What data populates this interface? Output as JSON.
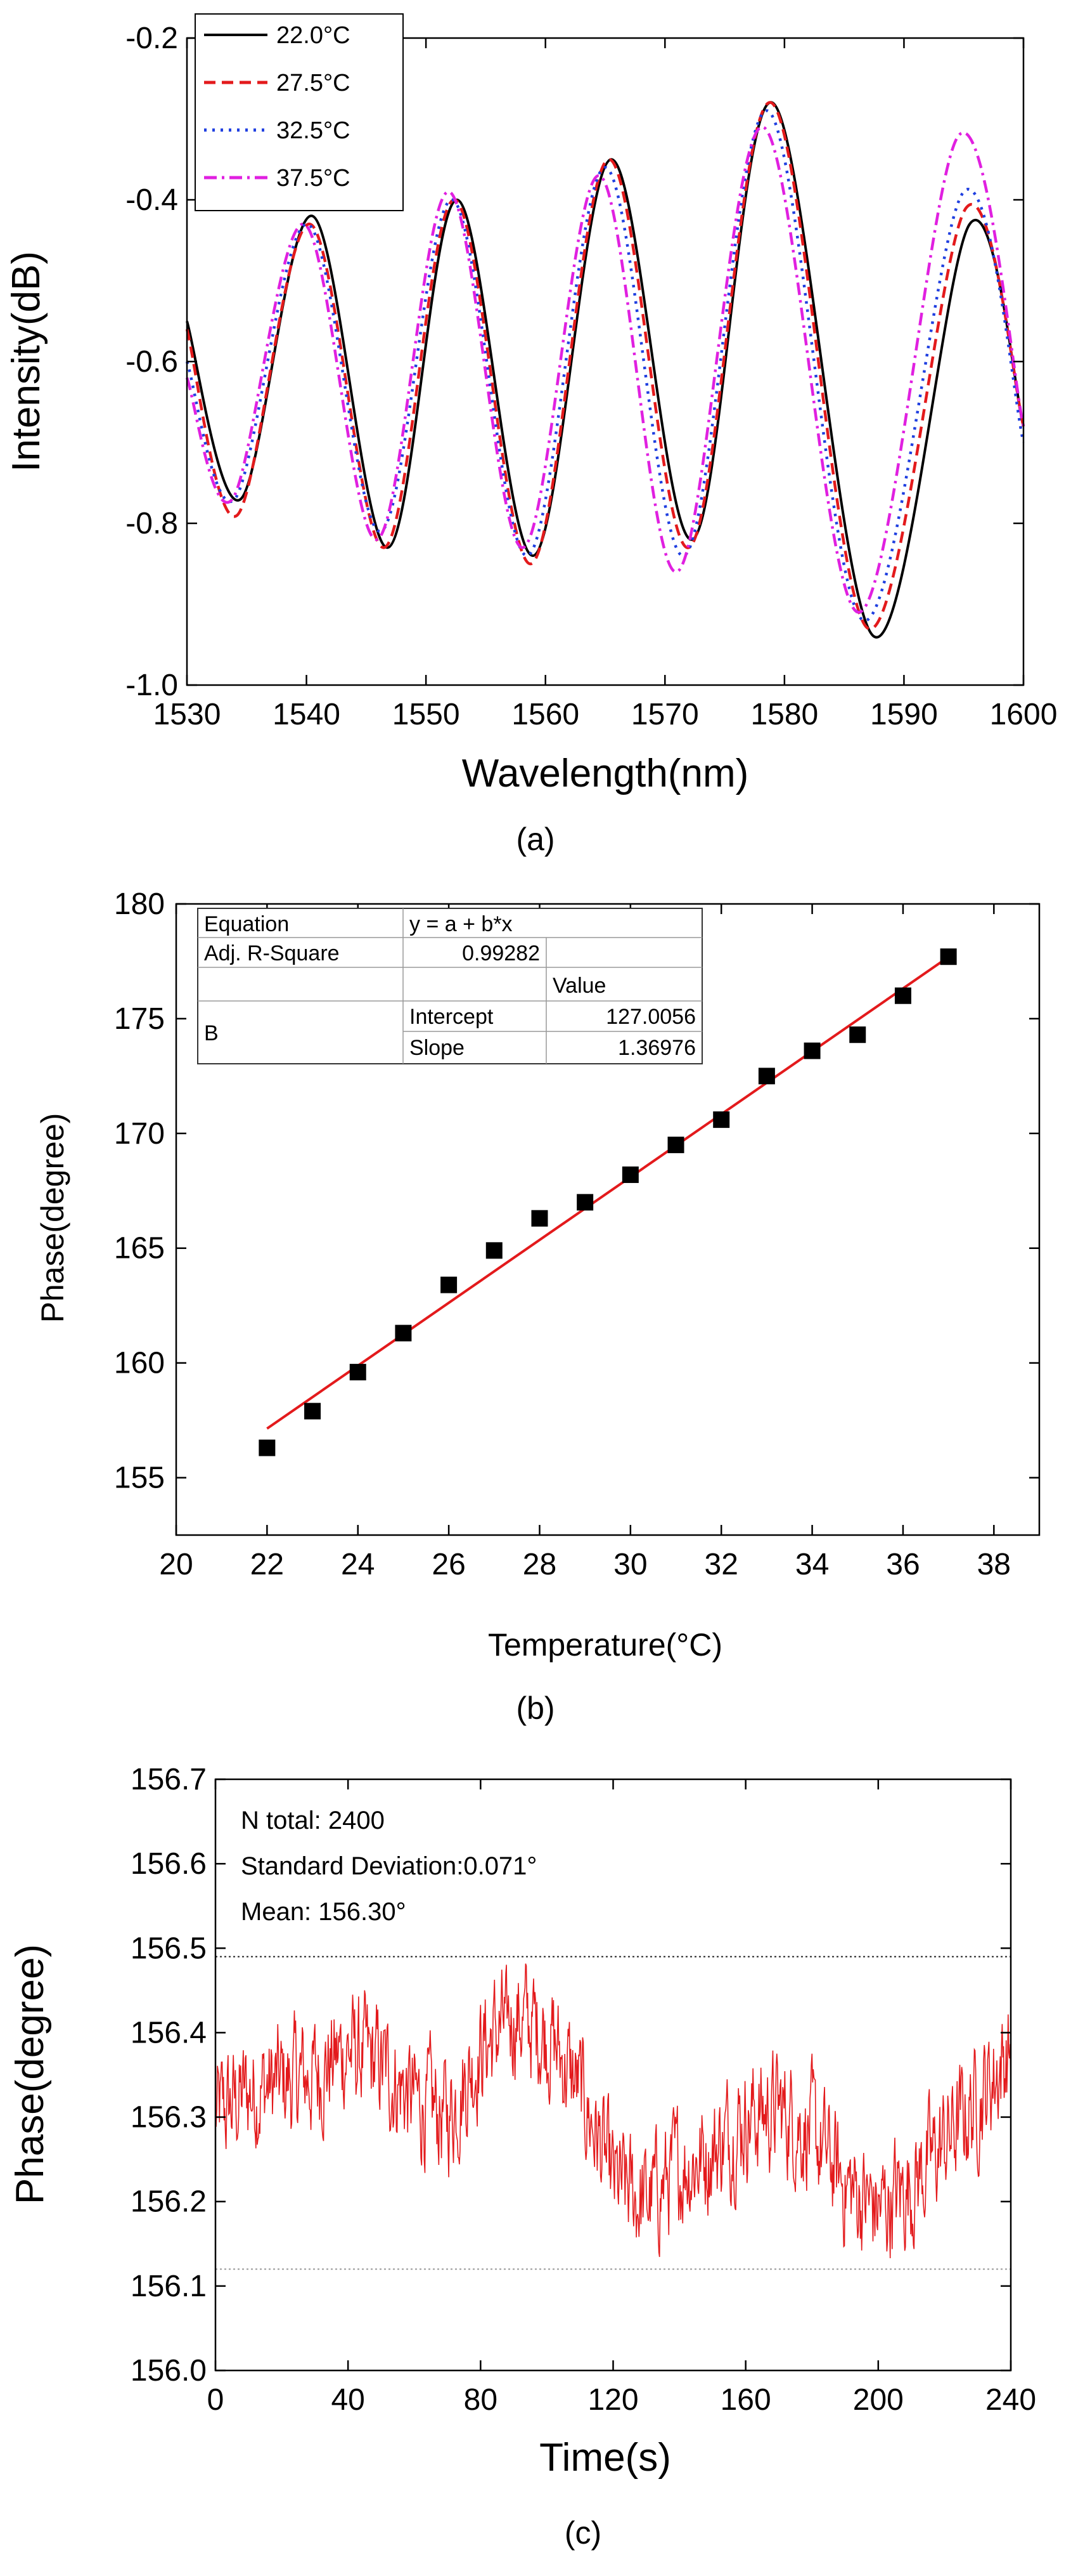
{
  "chart_data": [
    {
      "type": "line",
      "panel_label": "(a)",
      "xlabel": "Wavelength(nm)",
      "ylabel": "Intensity(dB)",
      "xlim": [
        1530,
        1600
      ],
      "ylim": [
        -1.0,
        -0.2
      ],
      "x_ticks": [
        "1530",
        "1540",
        "1550",
        "1560",
        "1570",
        "1580",
        "1590",
        "1600"
      ],
      "y_ticks": [
        "-1.0",
        "-0.8",
        "-0.6",
        "-0.4",
        "-0.2"
      ],
      "legend_position": "top-left",
      "series": [
        {
          "name": "22.0°C",
          "color": "#000000",
          "dash": "solid",
          "x": [
            1530,
            1534.5,
            1540.5,
            1546.8,
            1552.6,
            1559,
            1565.5,
            1572.3,
            1579,
            1587.5,
            1595.5,
            1600
          ],
          "y": [
            -0.55,
            -0.77,
            -0.42,
            -0.83,
            -0.4,
            -0.84,
            -0.35,
            -0.82,
            -0.28,
            -0.94,
            -0.43,
            -0.68
          ]
        },
        {
          "name": "27.5°C",
          "color": "#e31a1c",
          "dash": "dashed",
          "x": [
            1530,
            1534.2,
            1540.3,
            1546.5,
            1552.4,
            1558.8,
            1565.3,
            1572.0,
            1578.9,
            1587.0,
            1595.2,
            1600
          ],
          "y": [
            -0.56,
            -0.79,
            -0.43,
            -0.83,
            -0.4,
            -0.85,
            -0.35,
            -0.83,
            -0.28,
            -0.93,
            -0.41,
            -0.68
          ]
        },
        {
          "name": "32.5°C",
          "color": "#1f3fe0",
          "dash": "dotted",
          "x": [
            1530,
            1534.0,
            1540.1,
            1546.2,
            1552.2,
            1558.5,
            1565.0,
            1571.6,
            1578.6,
            1586.6,
            1595.0,
            1600
          ],
          "y": [
            -0.6,
            -0.77,
            -0.43,
            -0.81,
            -0.4,
            -0.84,
            -0.36,
            -0.84,
            -0.29,
            -0.92,
            -0.39,
            -0.7
          ]
        },
        {
          "name": "37.5°C",
          "color": "#e020e0",
          "dash": "dashdot",
          "x": [
            1530,
            1533.8,
            1539.8,
            1545.9,
            1551.9,
            1558.1,
            1564.5,
            1571.0,
            1578.2,
            1586.2,
            1594.6,
            1600
          ],
          "y": [
            -0.62,
            -0.77,
            -0.43,
            -0.82,
            -0.39,
            -0.83,
            -0.37,
            -0.86,
            -0.31,
            -0.91,
            -0.32,
            -0.68
          ]
        }
      ]
    },
    {
      "type": "scatter",
      "panel_label": "(b)",
      "xlabel": "Temperature(°C)",
      "ylabel": "Phase(degree)",
      "xlim": [
        20,
        39
      ],
      "ylim": [
        152.5,
        180
      ],
      "x_ticks": [
        "20",
        "22",
        "24",
        "26",
        "28",
        "30",
        "32",
        "34",
        "36",
        "38"
      ],
      "y_ticks": [
        "155",
        "160",
        "165",
        "170",
        "175",
        "180"
      ],
      "x": [
        22,
        23,
        24,
        25,
        26,
        27,
        28,
        29,
        30,
        31,
        32,
        33,
        34,
        35,
        36,
        37
      ],
      "y": [
        156.3,
        157.9,
        159.6,
        161.3,
        163.4,
        164.9,
        166.3,
        167.0,
        168.2,
        169.5,
        170.6,
        172.5,
        173.6,
        174.3,
        176.0,
        177.7
      ],
      "fit": {
        "intercept": 127.0056,
        "slope": 1.36976,
        "x_range": [
          22,
          37
        ],
        "color": "#e31a1c"
      },
      "stats_table": {
        "equation_label": "Equation",
        "equation_value": "y = a + b*x",
        "r2_label": "Adj. R-Square",
        "r2_value": "0.99282",
        "value_header": "Value",
        "row_label": "B",
        "intercept_label": "Intercept",
        "intercept_value": "127.0056",
        "slope_label": "Slope",
        "slope_value": "1.36976"
      }
    },
    {
      "type": "line",
      "panel_label": "(c)",
      "xlabel": "Time(s)",
      "ylabel": "Phase(degree)",
      "xlim": [
        0,
        240
      ],
      "ylim": [
        156.0,
        156.7
      ],
      "x_ticks": [
        "0",
        "40",
        "80",
        "120",
        "160",
        "200",
        "240"
      ],
      "y_ticks": [
        "156.0",
        "156.1",
        "156.2",
        "156.3",
        "156.4",
        "156.5",
        "156.6",
        "156.7"
      ],
      "color": "#e31a1c",
      "n_total_text": "N total: 2400",
      "std_text": "Standard Deviation:0.071°",
      "mean_text": "Mean: 156.30°",
      "upper_ref": 156.49,
      "lower_ref": 156.12,
      "trend": {
        "t": [
          0,
          10,
          20,
          30,
          40,
          50,
          60,
          70,
          80,
          90,
          100,
          110,
          115,
          120,
          130,
          140,
          150,
          160,
          170,
          180,
          190,
          200,
          210,
          220,
          230,
          240
        ],
        "v": [
          156.3,
          156.33,
          156.34,
          156.35,
          156.38,
          156.36,
          156.32,
          156.3,
          156.38,
          156.42,
          156.4,
          156.33,
          156.28,
          156.22,
          156.2,
          156.24,
          156.26,
          156.3,
          156.31,
          156.28,
          156.22,
          156.19,
          156.22,
          156.27,
          156.32,
          156.38
        ]
      }
    }
  ]
}
